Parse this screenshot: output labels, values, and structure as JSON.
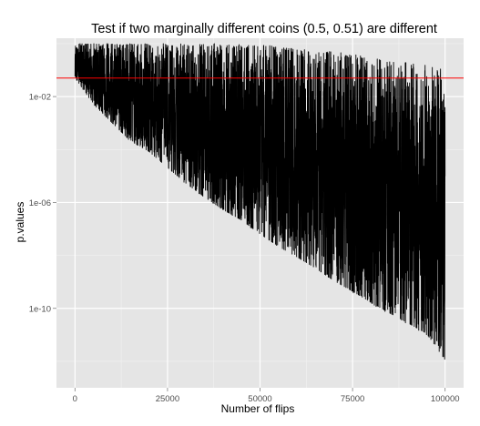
{
  "chart_data": {
    "type": "line",
    "title": "Test if two marginally different coins (0.5, 0.51) are different",
    "xlabel": "Number of flips",
    "ylabel": "p.values",
    "x_scale": "linear",
    "y_scale": "log10",
    "xlim": [
      -5000,
      105000
    ],
    "ylim": [
      1e-13,
      1.6
    ],
    "x_ticks": [
      {
        "value": 0,
        "label": "0"
      },
      {
        "value": 25000,
        "label": "25000"
      },
      {
        "value": 50000,
        "label": "50000"
      },
      {
        "value": 75000,
        "label": "75000"
      },
      {
        "value": 100000,
        "label": "100000"
      }
    ],
    "y_ticks": [
      {
        "value": 0.01,
        "label": "1e-02"
      },
      {
        "value": 1e-06,
        "label": "1e-06"
      },
      {
        "value": 1e-10,
        "label": "1e-10"
      }
    ],
    "grid": true,
    "legend": "none",
    "series": [
      {
        "style": "oscillating noise between the upper and lower envelopes",
        "x": [
          0,
          5000,
          10000,
          15000,
          20000,
          25000,
          30000,
          35000,
          40000,
          45000,
          50000,
          55000,
          60000,
          65000,
          70000,
          75000,
          80000,
          85000,
          90000,
          95000,
          100000
        ],
        "upper": [
          1.0,
          1.0,
          1.0,
          1.0,
          1.0,
          1.0,
          1.0,
          1.0,
          1.0,
          0.95,
          0.9,
          0.8,
          0.7,
          0.6,
          0.5,
          0.4,
          0.3,
          0.25,
          0.2,
          0.15,
          0.1
        ],
        "lower": [
          0.05,
          0.005,
          0.001,
          0.0002,
          8e-05,
          2e-05,
          5e-06,
          1.5e-06,
          5e-07,
          2e-07,
          6e-08,
          2e-08,
          8e-09,
          3e-09,
          1e-09,
          4e-10,
          1.5e-10,
          6e-11,
          2.5e-11,
          1e-11,
          1e-12
        ],
        "color": "#000000"
      }
    ],
    "annotations": [
      {
        "type": "hline",
        "y": 0.05,
        "color": "#ff0000"
      }
    ],
    "colors": {
      "panel_background": "#e5e5e5",
      "major_grid": "#ffffff",
      "minor_grid": "#f2f2f2",
      "data_line": "#000000",
      "threshold_line": "#ff0000"
    }
  }
}
